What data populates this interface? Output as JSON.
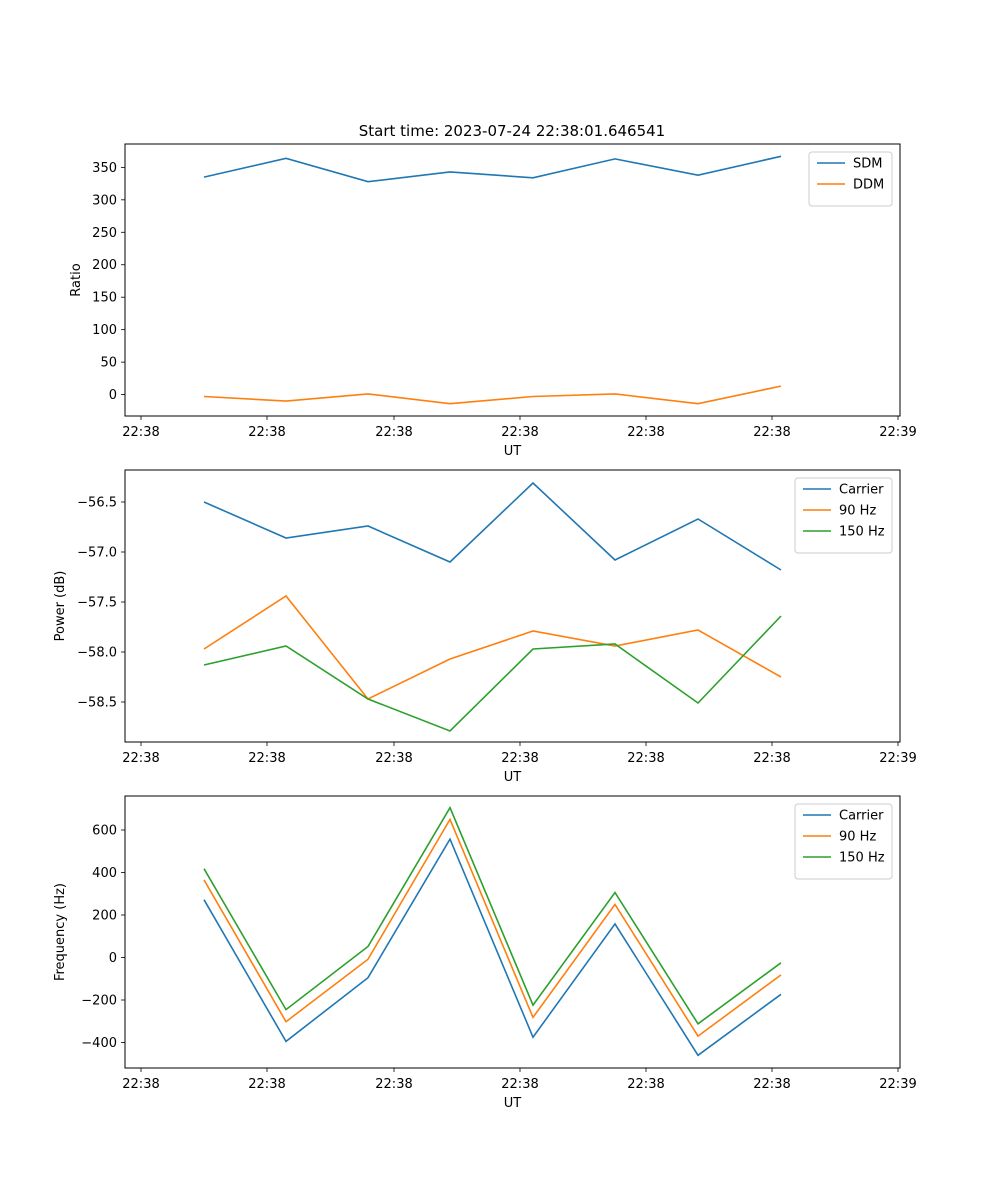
{
  "title": "Start time: 2023-07-24 22:38:01.646541",
  "colors": {
    "blue": "#1f77b4",
    "orange": "#ff7f0e",
    "green": "#2ca02c"
  },
  "chart_data": [
    {
      "type": "line",
      "ylabel": "Ratio",
      "xlabel": "UT",
      "xticks": [
        "22:38",
        "22:38",
        "22:38",
        "22:38",
        "22:38",
        "22:38",
        "22:38",
        "22:39"
      ],
      "yticks": [
        0,
        50,
        100,
        150,
        200,
        250,
        300,
        350
      ],
      "ylim": [
        -33,
        386
      ],
      "legend": "top-right",
      "series": [
        {
          "name": "SDM",
          "color": "blue",
          "values": [
            335,
            364,
            328,
            343,
            334,
            363,
            338,
            367
          ]
        },
        {
          "name": "DDM",
          "color": "orange",
          "values": [
            -3,
            -10,
            1,
            -14,
            -3,
            1,
            -14,
            13
          ]
        }
      ]
    },
    {
      "type": "line",
      "ylabel": "Power (dB)",
      "xlabel": "UT",
      "xticks": [
        "22:38",
        "22:38",
        "22:38",
        "22:38",
        "22:38",
        "22:38",
        "22:38",
        "22:39"
      ],
      "yticks": [
        -58.5,
        -58.0,
        -57.5,
        -57.0,
        -56.5
      ],
      "ytick_labels": [
        "−58.5",
        "−58.0",
        "−57.5",
        "−57.0",
        "−56.5"
      ],
      "ylim": [
        -58.9,
        -56.18
      ],
      "legend": "top-right",
      "series": [
        {
          "name": "Carrier",
          "color": "blue",
          "values": [
            -56.5,
            -56.86,
            -56.74,
            -57.1,
            -56.31,
            -57.08,
            -56.67,
            -57.18
          ]
        },
        {
          "name": "90 Hz",
          "color": "orange",
          "values": [
            -57.97,
            -57.44,
            -58.47,
            -58.07,
            -57.79,
            -57.94,
            -57.78,
            -58.25
          ]
        },
        {
          "name": "150 Hz",
          "color": "green",
          "values": [
            -58.13,
            -57.94,
            -58.47,
            -58.79,
            -57.97,
            -57.92,
            -58.51,
            -57.64
          ]
        }
      ]
    },
    {
      "type": "line",
      "ylabel": "Frequency (Hz)",
      "xlabel": "UT",
      "xticks": [
        "22:38",
        "22:38",
        "22:38",
        "22:38",
        "22:38",
        "22:38",
        "22:38",
        "22:39"
      ],
      "yticks": [
        -400,
        -200,
        0,
        200,
        400,
        600
      ],
      "ytick_labels": [
        "−400",
        "−200",
        "0",
        "200",
        "400",
        "600"
      ],
      "ylim": [
        -520,
        760
      ],
      "legend": "top-right",
      "series": [
        {
          "name": "Carrier",
          "color": "blue",
          "values": [
            272,
            -395,
            -95,
            557,
            -375,
            158,
            -460,
            -173
          ]
        },
        {
          "name": "90 Hz",
          "color": "orange",
          "values": [
            365,
            -302,
            -8,
            650,
            -282,
            250,
            -370,
            -82
          ]
        },
        {
          "name": "150 Hz",
          "color": "green",
          "values": [
            418,
            -245,
            52,
            705,
            -224,
            306,
            -312,
            -25
          ]
        }
      ]
    }
  ]
}
